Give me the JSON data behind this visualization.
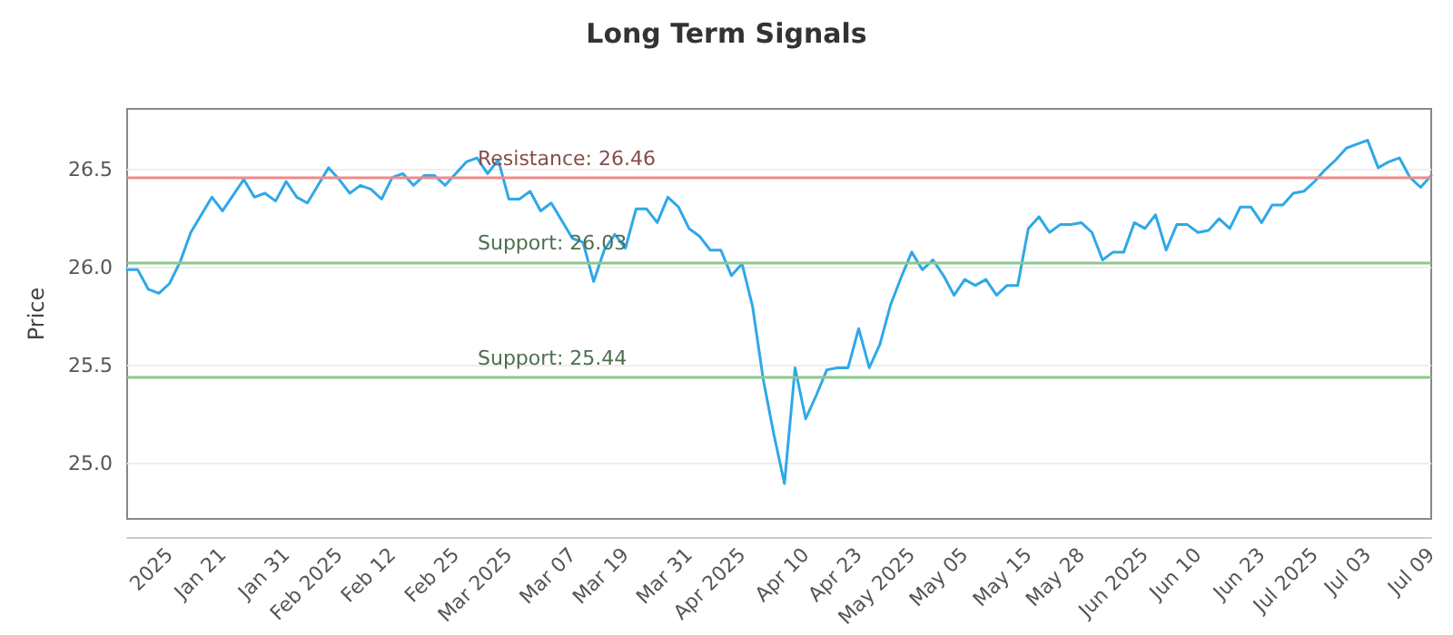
{
  "chart_data": {
    "type": "line",
    "title": "Long Term Signals",
    "ylabel": "Price",
    "categories": [
      null,
      null,
      null,
      null,
      "2025",
      null,
      null,
      null,
      null,
      "Jan 21",
      null,
      null,
      null,
      null,
      null,
      "Jan 31",
      null,
      null,
      null,
      null,
      "Feb 2025",
      null,
      null,
      null,
      null,
      "Feb 12",
      null,
      null,
      null,
      null,
      null,
      "Feb 25",
      null,
      null,
      null,
      null,
      "Mar 2025",
      null,
      null,
      null,
      null,
      null,
      "Mar 07",
      null,
      null,
      null,
      null,
      "Mar 19",
      null,
      null,
      null,
      null,
      null,
      "Mar 31",
      null,
      null,
      null,
      null,
      "Apr 2025",
      null,
      null,
      null,
      null,
      null,
      "Apr 10",
      null,
      null,
      null,
      null,
      "Apr 23",
      null,
      null,
      null,
      null,
      "May 2025",
      null,
      null,
      null,
      null,
      "May 05",
      null,
      null,
      null,
      null,
      null,
      "May 15",
      null,
      null,
      null,
      null,
      "May 28",
      null,
      null,
      null,
      null,
      null,
      "Jun 2025",
      null,
      null,
      null,
      null,
      "Jun 10",
      null,
      null,
      null,
      null,
      null,
      "Jun 23",
      null,
      null,
      null,
      null,
      "Jul 2025",
      null,
      null,
      null,
      null,
      "Jul 03",
      null,
      null,
      null,
      null,
      null,
      "Jul 09"
    ],
    "series": [
      {
        "color": "#2fa8e8",
        "values": [
          25.99,
          25.99,
          25.89,
          25.87,
          25.92,
          26.03,
          26.18,
          26.27,
          26.36,
          26.29,
          26.37,
          26.45,
          26.36,
          26.38,
          26.34,
          26.44,
          26.36,
          26.33,
          26.42,
          26.51,
          26.45,
          26.38,
          26.42,
          26.4,
          26.35,
          26.46,
          26.48,
          26.42,
          26.47,
          26.47,
          26.42,
          26.48,
          26.54,
          26.56,
          26.48,
          26.55,
          26.35,
          26.35,
          26.39,
          26.29,
          26.33,
          26.24,
          26.15,
          26.13,
          25.93,
          26.09,
          26.17,
          26.1,
          26.3,
          26.3,
          26.23,
          26.36,
          26.31,
          26.2,
          26.16,
          26.09,
          26.09,
          25.96,
          26.02,
          25.8,
          25.43,
          25.15,
          24.9,
          25.49,
          25.23,
          25.35,
          25.48,
          25.49,
          25.49,
          25.69,
          25.49,
          25.61,
          25.81,
          25.95,
          26.08,
          25.99,
          26.04,
          25.96,
          25.86,
          25.94,
          25.91,
          25.94,
          25.86,
          25.91,
          25.91,
          26.2,
          26.26,
          26.18,
          26.22,
          26.22,
          26.23,
          26.18,
          26.04,
          26.08,
          26.08,
          26.23,
          26.2,
          26.27,
          26.09,
          26.22,
          26.22,
          26.18,
          26.19,
          26.25,
          26.2,
          26.31,
          26.31,
          26.23,
          26.32,
          26.32,
          26.38,
          26.39,
          26.44,
          26.5,
          26.55,
          26.61,
          26.63,
          26.65,
          26.51,
          26.54,
          26.56,
          26.46,
          26.41,
          26.47
        ]
      }
    ],
    "ylim": [
      24.72,
      26.81
    ],
    "yticks": [
      {
        "value": 25,
        "label": "25.0"
      },
      {
        "value": 25.5,
        "label": "25.5"
      },
      {
        "value": 26,
        "label": "26.0"
      },
      {
        "value": 26.5,
        "label": "26.5"
      }
    ],
    "ref_lines": [
      {
        "axis": "y",
        "value": 26.46,
        "label": "Resistance: 26.46",
        "color": "#f08a8a"
      },
      {
        "axis": "y",
        "value": 26.03,
        "label": "Support: 26.03",
        "color": "#8cc88c"
      },
      {
        "axis": "y",
        "value": 25.44,
        "label": "Support: 25.44",
        "color": "#8cc88c"
      }
    ],
    "grid": "y",
    "marker": "none",
    "line_style": "solid"
  }
}
